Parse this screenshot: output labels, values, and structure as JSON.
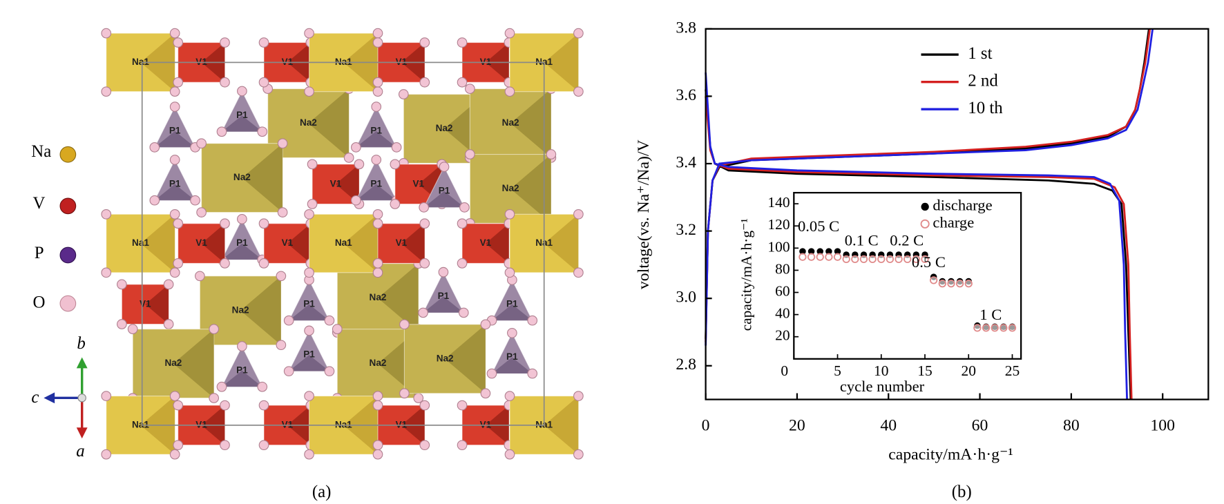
{
  "structure": {
    "legend": [
      "Na",
      "V",
      "P",
      "O"
    ],
    "axes": [
      "b",
      "c",
      "a"
    ],
    "polyhedra": [
      "P1",
      "P1",
      "P1",
      "Na2",
      "P1",
      "Na2",
      "Na2",
      "Na2",
      "V1",
      "P1",
      "V1",
      "P1",
      "Na2",
      "P1",
      "V1",
      "Na2",
      "P1",
      "Na2",
      "P1",
      "P1",
      "Na2",
      "P1",
      "P1",
      "Na2",
      "Na2",
      "P1",
      "Na1",
      "V1",
      "V1",
      "Na1",
      "V1",
      "V1",
      "Na1",
      "Na1",
      "V1",
      "V1",
      "Na1",
      "V1",
      "V1",
      "Na1",
      "Na1",
      "V1",
      "V1",
      "Na1",
      "V1",
      "V1",
      "Na1"
    ],
    "caption": "(a)"
  },
  "chart_data": [
    {
      "type": "line",
      "xlabel": "capacity/mA·h·g⁻¹",
      "ylabel": "voltage(vs. Na⁺/Na)/V",
      "xlim": [
        0,
        110
      ],
      "ylim": [
        2.7,
        3.8
      ],
      "xticks": [
        0,
        20,
        40,
        60,
        80,
        100
      ],
      "yticks": [
        2.8,
        {
          "value": 3,
          "label": "3.0"
        },
        3.2,
        3.4,
        3.6,
        3.8
      ],
      "legend": "upper center",
      "series": [
        {
          "name": "1 st",
          "color": "#000000",
          "x": [
            0,
            1,
            2,
            5,
            20,
            50,
            75,
            85,
            89,
            91,
            92,
            92.5,
            93,
            null,
            0,
            0.5,
            1.5,
            3,
            10,
            30,
            50,
            70,
            80,
            88,
            92,
            94,
            95,
            96,
            97
          ],
          "values": [
            3.62,
            3.45,
            3.4,
            3.38,
            3.37,
            3.36,
            3.35,
            3.34,
            3.32,
            3.28,
            3.1,
            2.9,
            2.7,
            null,
            2.88,
            3.2,
            3.35,
            3.39,
            3.41,
            3.42,
            3.43,
            3.445,
            3.46,
            3.48,
            3.51,
            3.56,
            3.62,
            3.7,
            3.8
          ]
        },
        {
          "name": "2 nd",
          "color": "#d42020",
          "x": [
            0,
            1,
            2,
            5,
            20,
            50,
            75,
            85,
            89.5,
            91.5,
            92.5,
            92.8,
            93.2,
            null,
            0,
            0.5,
            1.5,
            3,
            10,
            30,
            50,
            70,
            80,
            88,
            92,
            94,
            95,
            96.2,
            97.2
          ],
          "values": [
            3.6,
            3.44,
            3.4,
            3.385,
            3.375,
            3.365,
            3.36,
            3.355,
            3.33,
            3.28,
            3.1,
            2.9,
            2.7,
            null,
            2.87,
            3.2,
            3.35,
            3.395,
            3.415,
            3.425,
            3.435,
            3.45,
            3.465,
            3.485,
            3.51,
            3.56,
            3.62,
            3.7,
            3.8
          ]
        },
        {
          "name": "10 th",
          "color": "#2020e0",
          "x": [
            0,
            1,
            2,
            5,
            20,
            50,
            75,
            85,
            88.5,
            90.5,
            91.5,
            91.8,
            92.2,
            null,
            0,
            0.5,
            1.5,
            3,
            10,
            30,
            50,
            70,
            80,
            88,
            92,
            94.5,
            95.5,
            96.8,
            97.8
          ],
          "values": [
            3.67,
            3.45,
            3.4,
            3.39,
            3.38,
            3.37,
            3.365,
            3.36,
            3.34,
            3.29,
            3.1,
            2.9,
            2.7,
            null,
            2.86,
            3.2,
            3.35,
            3.4,
            3.41,
            3.42,
            3.43,
            3.44,
            3.455,
            3.475,
            3.5,
            3.56,
            3.62,
            3.7,
            3.8
          ]
        }
      ],
      "caption": "(b)"
    },
    {
      "type": "scatter",
      "xlabel": "cycle number",
      "ylabel": "capacity/mA·h·g⁻¹",
      "xlim": [
        0,
        26
      ],
      "ylim": [
        0,
        150
      ],
      "xticks": [
        0,
        5,
        10,
        15,
        20,
        25
      ],
      "yticks": [
        20,
        40,
        60,
        80,
        100,
        120,
        140
      ],
      "annotations": [
        "0.05 C",
        "0.1 C",
        "0.2 C",
        "0.5 C",
        "1 C"
      ],
      "x": [
        1,
        2,
        3,
        4,
        5,
        6,
        7,
        8,
        9,
        10,
        11,
        12,
        13,
        14,
        15,
        16,
        17,
        18,
        19,
        20,
        21,
        22,
        23,
        24,
        25
      ],
      "series": [
        {
          "name": "discharge",
          "color": "#000000",
          "values": [
            97,
            97,
            97,
            97,
            97,
            94,
            94,
            94,
            94,
            94,
            94,
            94,
            94,
            94,
            94,
            74,
            70,
            70,
            70,
            70,
            30,
            29,
            29,
            29,
            29
          ]
        },
        {
          "name": "charge",
          "color": "#e08a8a",
          "values": [
            92,
            92,
            92,
            92,
            92,
            90,
            90,
            90,
            90,
            90,
            90,
            90,
            90,
            90,
            90,
            71,
            68,
            68,
            68,
            68,
            28,
            28,
            28,
            28,
            28
          ]
        }
      ]
    }
  ]
}
